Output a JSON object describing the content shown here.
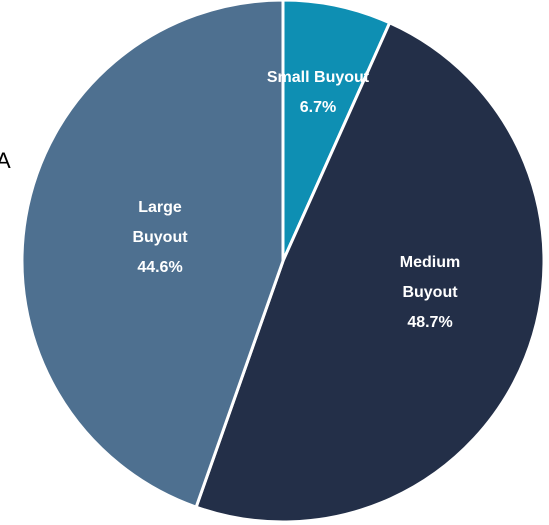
{
  "chart_data": {
    "type": "pie",
    "categories": [
      "Small Buyout",
      "Medium Buyout",
      "Large Buyout"
    ],
    "values": [
      6.7,
      48.7,
      44.6
    ],
    "value_labels": [
      "6.7%",
      "48.7%",
      "44.6%"
    ],
    "colors": [
      "#0e8fb3",
      "#232f48",
      "#4e7090"
    ],
    "annotation": "A"
  }
}
